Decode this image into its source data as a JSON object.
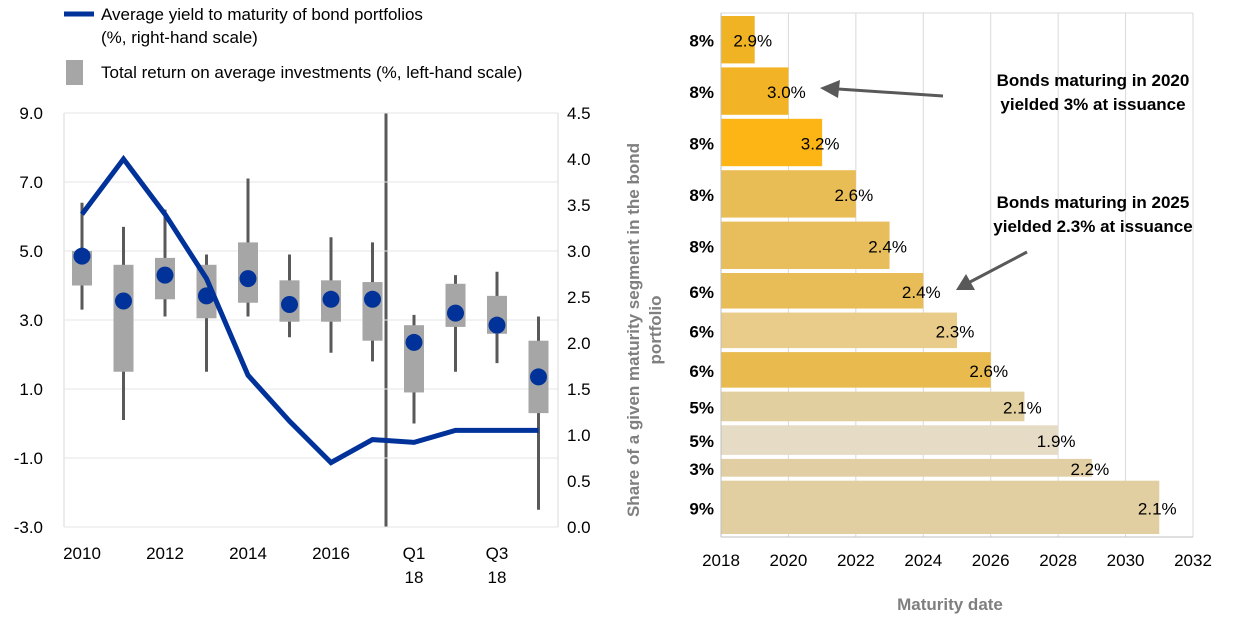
{
  "chart_data": [
    {
      "type": "box_line",
      "legend": {
        "placement": "top-left",
        "line_label_1": "Average yield to maturity of bond portfolios",
        "line_label_2": "(%, right-hand scale)",
        "box_label": "Total return on average investments (%, left-hand scale)"
      },
      "x_ticks": [
        {
          "l1": "2010",
          "l2": ""
        },
        {
          "l1": "2012",
          "l2": ""
        },
        {
          "l1": "2014",
          "l2": ""
        },
        {
          "l1": "2016",
          "l2": ""
        },
        {
          "l1": "Q1",
          "l2": "18"
        },
        {
          "l1": "Q3",
          "l2": "18"
        }
      ],
      "left_axis": {
        "min": -3,
        "max": 9,
        "ticks": [
          "9.0",
          "7.0",
          "5.0",
          "3.0",
          "1.0",
          "-1.0",
          "-3.0"
        ]
      },
      "right_axis": {
        "min": 0,
        "max": 4.5,
        "ticks": [
          "4.5",
          "4.0",
          "3.5",
          "3.0",
          "2.5",
          "2.0",
          "1.5",
          "1.0",
          "0.5",
          "0.0"
        ],
        "label_1": "Share of a given maturity segment in the bond",
        "label_2": "portfolio"
      },
      "boxes": [
        {
          "low": 3.3,
          "q1": 4.0,
          "median": 4.85,
          "q3": 5.0,
          "high": 6.4
        },
        {
          "low": 0.1,
          "q1": 1.5,
          "median": 3.55,
          "q3": 4.6,
          "high": 5.7
        },
        {
          "low": 3.1,
          "q1": 3.6,
          "median": 4.3,
          "q3": 4.8,
          "high": 6.2
        },
        {
          "low": 1.5,
          "q1": 3.05,
          "median": 3.7,
          "q3": 4.6,
          "high": 4.9
        },
        {
          "low": 3.1,
          "q1": 3.5,
          "median": 4.2,
          "q3": 5.25,
          "high": 7.1
        },
        {
          "low": 2.5,
          "q1": 2.95,
          "median": 3.45,
          "q3": 4.15,
          "high": 4.9
        },
        {
          "low": 2.05,
          "q1": 2.95,
          "median": 3.6,
          "q3": 4.15,
          "high": 5.4
        },
        {
          "low": 1.8,
          "q1": 2.4,
          "median": 3.6,
          "q3": 4.1,
          "high": 5.25
        },
        {
          "low": 0.0,
          "q1": 0.9,
          "median": 2.35,
          "q3": 2.85,
          "high": 3.15
        },
        {
          "low": 1.5,
          "q1": 2.8,
          "median": 3.2,
          "q3": 4.05,
          "high": 4.3
        },
        {
          "low": 1.75,
          "q1": 2.6,
          "median": 2.85,
          "q3": 3.7,
          "high": 4.4
        },
        {
          "low": -2.5,
          "q1": 0.3,
          "median": 1.35,
          "q3": 2.4,
          "high": 3.1
        }
      ],
      "line_values": [
        3.4,
        4.0,
        3.4,
        2.7,
        1.65,
        1.15,
        0.7,
        0.95,
        0.92,
        1.05,
        1.05,
        1.05
      ]
    },
    {
      "type": "horizontal_bar",
      "xlabel": "Maturity date",
      "x_axis": {
        "min": 2018,
        "max": 2032,
        "ticks": [
          "2018",
          "2020",
          "2022",
          "2024",
          "2026",
          "2028",
          "2030",
          "2032"
        ]
      },
      "bars": [
        {
          "share": "8%",
          "end": 2019,
          "label": "2.9%",
          "color": "#f0b324"
        },
        {
          "share": "8%",
          "end": 2020,
          "label": "3.0%",
          "color": "#f2b326"
        },
        {
          "share": "8%",
          "end": 2021,
          "label": "3.2%",
          "color": "#fdb515"
        },
        {
          "share": "8%",
          "end": 2022,
          "label": "2.6%",
          "color": "#e9bd55"
        },
        {
          "share": "8%",
          "end": 2023,
          "label": "2.4%",
          "color": "#e8be5c"
        },
        {
          "share": "6%",
          "end": 2024,
          "label": "2.4%",
          "color": "#e8bc56"
        },
        {
          "share": "6%",
          "end": 2025,
          "label": "2.3%",
          "color": "#e9cb8a"
        },
        {
          "share": "6%",
          "end": 2026,
          "label": "2.6%",
          "color": "#e9bb4f"
        },
        {
          "share": "5%",
          "end": 2027,
          "label": "2.1%",
          "color": "#e2cf9f"
        },
        {
          "share": "5%",
          "end": 2028,
          "label": "1.9%",
          "color": "#e6dbc4"
        },
        {
          "share": "3%",
          "end": 2029,
          "label": "2.2%",
          "color": "#e1cfa3"
        },
        {
          "share": "9%",
          "end": 2031,
          "label": "2.1%",
          "color": "#e1cfa2"
        }
      ],
      "annotations": [
        {
          "line1": "Bonds maturing in 2020",
          "line2": "yielded 3% at issuance"
        },
        {
          "line1": "Bonds maturing in 2025",
          "line2": "yielded 2.3% at issuance"
        }
      ]
    }
  ],
  "colors": {
    "line": "#003299",
    "box": "#a6a6a6",
    "whisker": "#595959",
    "dot": "#003299",
    "axis_text_grey": "#7f7f7f"
  }
}
